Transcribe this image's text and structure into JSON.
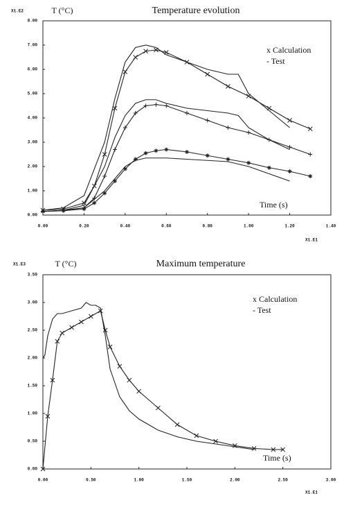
{
  "chart_data": [
    {
      "type": "line",
      "title": "Temperature evolution",
      "y_label": "T (°C)",
      "x_label": "Time (s)",
      "y_multiplier": "X1.E2",
      "x_multiplier": "X1.E1",
      "legend": [
        "x Calculation",
        "- Test"
      ],
      "xlim": [
        0,
        1.4
      ],
      "ylim": [
        0,
        8
      ],
      "xticks": [
        {
          "value": 0,
          "label": "0.00"
        },
        {
          "value": 0.2,
          "label": "0.20"
        },
        {
          "value": 0.4,
          "label": "0.40"
        },
        {
          "value": 0.6,
          "label": "0.60"
        },
        {
          "value": 0.8,
          "label": "0.80"
        },
        {
          "value": 1.0,
          "label": "1.00"
        },
        {
          "value": 1.2,
          "label": "1.20"
        },
        {
          "value": 1.4,
          "label": "1.40"
        }
      ],
      "yticks": [
        {
          "value": 0,
          "label": "0.00"
        },
        {
          "value": 1,
          "label": "1.00"
        },
        {
          "value": 2,
          "label": "2.00"
        },
        {
          "value": 3,
          "label": "3.00"
        },
        {
          "value": 4,
          "label": "4.00"
        },
        {
          "value": 5,
          "label": "5.00"
        },
        {
          "value": 6,
          "label": "6.00"
        },
        {
          "value": 7,
          "label": "7.00"
        },
        {
          "value": 8,
          "label": "8.00"
        }
      ],
      "series": [
        {
          "marker": "x",
          "color": "#222",
          "x": [
            0,
            0.1,
            0.2,
            0.25,
            0.3,
            0.35,
            0.4,
            0.45,
            0.5,
            0.55,
            0.6,
            0.7,
            0.8,
            0.9,
            1.0,
            1.1,
            1.2,
            1.3
          ],
          "values": [
            0.2,
            0.25,
            0.5,
            1.2,
            2.5,
            4.4,
            5.9,
            6.5,
            6.75,
            6.8,
            6.7,
            6.3,
            5.8,
            5.3,
            4.9,
            4.4,
            3.9,
            3.55
          ]
        },
        {
          "marker": "none",
          "color": "#222",
          "x": [
            0,
            0.1,
            0.2,
            0.3,
            0.35,
            0.4,
            0.45,
            0.5,
            0.55,
            0.6,
            0.7,
            0.8,
            0.9,
            0.95,
            1.0,
            1.1,
            1.2
          ],
          "values": [
            0.2,
            0.3,
            0.8,
            3.0,
            4.8,
            6.3,
            6.9,
            7.0,
            6.9,
            6.6,
            6.3,
            6.0,
            5.8,
            5.8,
            5.0,
            4.3,
            3.6
          ]
        },
        {
          "marker": "+",
          "color": "#222",
          "x": [
            0,
            0.1,
            0.2,
            0.25,
            0.3,
            0.35,
            0.4,
            0.45,
            0.5,
            0.55,
            0.6,
            0.7,
            0.8,
            0.9,
            1.0,
            1.1,
            1.2,
            1.3
          ],
          "values": [
            0.15,
            0.2,
            0.3,
            0.7,
            1.6,
            2.7,
            3.6,
            4.2,
            4.5,
            4.55,
            4.5,
            4.2,
            3.9,
            3.6,
            3.4,
            3.1,
            2.8,
            2.5
          ]
        },
        {
          "marker": "none",
          "color": "#222",
          "x": [
            0,
            0.1,
            0.2,
            0.3,
            0.35,
            0.4,
            0.45,
            0.5,
            0.55,
            0.6,
            0.7,
            0.8,
            0.9,
            0.95,
            1.0,
            1.1,
            1.2
          ],
          "values": [
            0.15,
            0.2,
            0.4,
            2.0,
            3.2,
            4.1,
            4.6,
            4.75,
            4.75,
            4.6,
            4.4,
            4.3,
            4.2,
            4.1,
            3.6,
            3.1,
            2.7
          ]
        },
        {
          "marker": "*",
          "color": "#222",
          "x": [
            0,
            0.1,
            0.2,
            0.25,
            0.3,
            0.35,
            0.4,
            0.45,
            0.5,
            0.55,
            0.6,
            0.7,
            0.8,
            0.9,
            1.0,
            1.1,
            1.2,
            1.3
          ],
          "values": [
            0.15,
            0.18,
            0.25,
            0.5,
            0.9,
            1.4,
            1.9,
            2.3,
            2.55,
            2.65,
            2.7,
            2.6,
            2.45,
            2.3,
            2.15,
            1.95,
            1.8,
            1.6
          ]
        },
        {
          "marker": "none",
          "color": "#222",
          "x": [
            0,
            0.1,
            0.2,
            0.3,
            0.35,
            0.4,
            0.45,
            0.5,
            0.6,
            0.7,
            0.8,
            0.9,
            1.0,
            1.1,
            1.2
          ],
          "values": [
            0.15,
            0.18,
            0.3,
            1.0,
            1.5,
            2.0,
            2.25,
            2.35,
            2.35,
            2.3,
            2.25,
            2.2,
            2.0,
            1.7,
            1.4
          ]
        }
      ]
    },
    {
      "type": "line",
      "title": "Maximum temperature",
      "y_label": "T (°C)",
      "x_label": "Time (s)",
      "y_multiplier": "X1.E3",
      "x_multiplier": "X1.E1",
      "legend": [
        "x Calculation",
        "- Test"
      ],
      "xlim": [
        0,
        3
      ],
      "ylim": [
        0,
        3.5
      ],
      "xticks": [
        {
          "value": 0,
          "label": "0.00"
        },
        {
          "value": 0.5,
          "label": "0.50"
        },
        {
          "value": 1.0,
          "label": "1.00"
        },
        {
          "value": 1.5,
          "label": "1.50"
        },
        {
          "value": 2.0,
          "label": "2.00"
        },
        {
          "value": 2.5,
          "label": "2.50"
        },
        {
          "value": 3.0,
          "label": "3.00"
        }
      ],
      "yticks": [
        {
          "value": 0,
          "label": "0.00"
        },
        {
          "value": 0.5,
          "label": "0.50"
        },
        {
          "value": 1.0,
          "label": "1.00"
        },
        {
          "value": 1.5,
          "label": "1.50"
        },
        {
          "value": 2.0,
          "label": "2.00"
        },
        {
          "value": 2.5,
          "label": "2.50"
        },
        {
          "value": 3.0,
          "label": "3.00"
        },
        {
          "value": 3.5,
          "label": "3.50"
        }
      ],
      "series": [
        {
          "marker": "x",
          "color": "#222",
          "x": [
            0,
            0.05,
            0.1,
            0.15,
            0.2,
            0.3,
            0.4,
            0.5,
            0.6,
            0.65,
            0.7,
            0.8,
            0.9,
            1.0,
            1.2,
            1.4,
            1.6,
            1.8,
            2.0,
            2.2,
            2.4,
            2.5
          ],
          "values": [
            0,
            0.95,
            1.6,
            2.3,
            2.45,
            2.55,
            2.65,
            2.75,
            2.85,
            2.5,
            2.2,
            1.85,
            1.6,
            1.4,
            1.1,
            0.8,
            0.6,
            0.5,
            0.42,
            0.37,
            0.35,
            0.35
          ]
        },
        {
          "marker": "none",
          "color": "#222",
          "x": [
            0,
            0.02,
            0.05,
            0.1,
            0.15,
            0.2,
            0.3,
            0.4,
            0.45,
            0.5,
            0.55,
            0.6,
            0.65,
            0.7,
            0.8,
            0.9,
            1.0,
            1.2,
            1.4,
            1.6,
            1.8,
            2.0,
            2.2
          ],
          "values": [
            2.0,
            2.05,
            2.4,
            2.7,
            2.8,
            2.8,
            2.85,
            2.9,
            3.0,
            2.95,
            2.95,
            2.9,
            2.4,
            1.8,
            1.3,
            1.05,
            0.9,
            0.7,
            0.58,
            0.5,
            0.45,
            0.4,
            0.35
          ]
        }
      ]
    }
  ]
}
